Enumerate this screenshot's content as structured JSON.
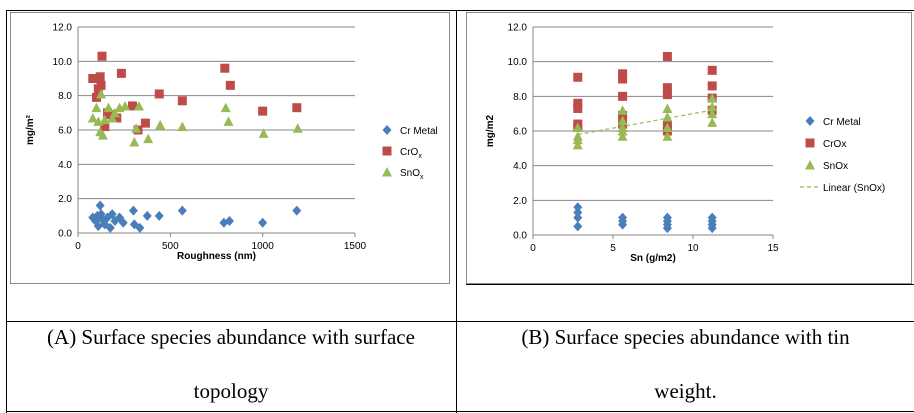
{
  "colors": {
    "cr": "#4A7EBB",
    "crox": "#BE4B48",
    "snox": "#98B954",
    "grid": "#868686",
    "trend": "#98B954"
  },
  "captions": {
    "a_line1": "(A) Surface species abundance with surface",
    "a_line2": "topology",
    "b_line1": "(B) Surface species abundance with tin",
    "b_line2": "weight."
  },
  "chart_data": [
    {
      "type": "scatter",
      "ylabel": "mg/m²",
      "xlabel": "Roughness (nm)",
      "xlim": [
        0,
        1500
      ],
      "ylim": [
        0,
        12
      ],
      "x_ticks": [
        "0",
        "500",
        "1000",
        "1500"
      ],
      "y_ticks": [
        "0.0",
        "2.0",
        "4.0",
        "6.0",
        "8.0",
        "10.0",
        "12.0"
      ],
      "grid": true,
      "legend_position": "right",
      "legend": [
        {
          "base": "Cr Metal",
          "sub": ""
        },
        {
          "base": "CrO",
          "sub": "x"
        },
        {
          "base": "SnO",
          "sub": "x"
        }
      ],
      "series": [
        {
          "name": "Cr Metal",
          "marker": "diamond",
          "points": [
            [
              80,
              0.9
            ],
            [
              95,
              0.7
            ],
            [
              105,
              1.0
            ],
            [
              110,
              0.4
            ],
            [
              120,
              1.6
            ],
            [
              125,
              1.1
            ],
            [
              130,
              0.8
            ],
            [
              145,
              0.5
            ],
            [
              160,
              0.9
            ],
            [
              175,
              0.3
            ],
            [
              185,
              1.1
            ],
            [
              200,
              0.7
            ],
            [
              225,
              0.9
            ],
            [
              245,
              0.6
            ],
            [
              300,
              1.3
            ],
            [
              305,
              0.5
            ],
            [
              335,
              0.3
            ],
            [
              375,
              1.0
            ],
            [
              440,
              1.0
            ],
            [
              565,
              1.3
            ],
            [
              790,
              0.6
            ],
            [
              820,
              0.7
            ],
            [
              1000,
              0.6
            ],
            [
              1185,
              1.3
            ]
          ]
        },
        {
          "name": "CrOx",
          "marker": "square",
          "points": [
            [
              80,
              9.0
            ],
            [
              100,
              7.9
            ],
            [
              110,
              8.4
            ],
            [
              120,
              9.1
            ],
            [
              125,
              8.6
            ],
            [
              130,
              10.3
            ],
            [
              145,
              6.2
            ],
            [
              160,
              7.0
            ],
            [
              175,
              6.9
            ],
            [
              190,
              6.7
            ],
            [
              210,
              6.7
            ],
            [
              235,
              9.3
            ],
            [
              295,
              7.4
            ],
            [
              325,
              6.0
            ],
            [
              365,
              6.4
            ],
            [
              440,
              8.1
            ],
            [
              565,
              7.7
            ],
            [
              795,
              9.6
            ],
            [
              825,
              8.6
            ],
            [
              1000,
              7.1
            ],
            [
              1185,
              7.3
            ]
          ]
        },
        {
          "name": "SnOx",
          "marker": "triangle",
          "points": [
            [
              80,
              6.7
            ],
            [
              100,
              7.3
            ],
            [
              110,
              6.5
            ],
            [
              120,
              5.9
            ],
            [
              125,
              8.1
            ],
            [
              135,
              5.7
            ],
            [
              145,
              6.6
            ],
            [
              165,
              7.3
            ],
            [
              185,
              6.7
            ],
            [
              200,
              7.0
            ],
            [
              225,
              7.3
            ],
            [
              255,
              7.4
            ],
            [
              305,
              5.3
            ],
            [
              315,
              6.1
            ],
            [
              330,
              7.4
            ],
            [
              380,
              5.5
            ],
            [
              445,
              6.3
            ],
            [
              565,
              6.2
            ],
            [
              800,
              7.3
            ],
            [
              815,
              6.5
            ],
            [
              1005,
              5.8
            ],
            [
              1190,
              6.1
            ]
          ]
        }
      ]
    },
    {
      "type": "scatter",
      "ylabel": "mg/m2",
      "xlabel": "Sn (g/m2)",
      "xlim": [
        0,
        15
      ],
      "ylim": [
        0,
        12
      ],
      "x_ticks": [
        "0",
        "5",
        "10",
        "15"
      ],
      "y_ticks": [
        "0.0",
        "2.0",
        "4.0",
        "6.0",
        "8.0",
        "10.0",
        "12.0"
      ],
      "grid": true,
      "legend_position": "right",
      "legend": [
        {
          "base": "Cr Metal",
          "sub": ""
        },
        {
          "base": "CrOx",
          "sub": ""
        },
        {
          "base": "SnOx",
          "sub": ""
        },
        {
          "base": "Linear (SnOx)",
          "sub": ""
        }
      ],
      "series": [
        {
          "name": "Cr Metal",
          "marker": "diamond",
          "points": [
            [
              2.8,
              1.6
            ],
            [
              2.8,
              1.3
            ],
            [
              2.8,
              1.0
            ],
            [
              2.8,
              0.5
            ],
            [
              5.6,
              1.0
            ],
            [
              5.6,
              0.8
            ],
            [
              5.6,
              0.6
            ],
            [
              8.4,
              1.0
            ],
            [
              8.4,
              0.8
            ],
            [
              8.4,
              0.6
            ],
            [
              8.4,
              0.4
            ],
            [
              11.2,
              1.0
            ],
            [
              11.2,
              0.8
            ],
            [
              11.2,
              0.6
            ],
            [
              11.2,
              0.4
            ]
          ]
        },
        {
          "name": "CrOx",
          "marker": "square",
          "points": [
            [
              2.8,
              9.1
            ],
            [
              2.8,
              7.6
            ],
            [
              2.8,
              7.3
            ],
            [
              2.8,
              6.4
            ],
            [
              2.8,
              6.2
            ],
            [
              5.6,
              9.3
            ],
            [
              5.6,
              9.0
            ],
            [
              5.6,
              8.0
            ],
            [
              5.6,
              6.9
            ],
            [
              5.6,
              6.4
            ],
            [
              8.4,
              10.3
            ],
            [
              8.4,
              8.5
            ],
            [
              8.4,
              8.1
            ],
            [
              8.4,
              6.3
            ],
            [
              8.4,
              6.0
            ],
            [
              11.2,
              9.5
            ],
            [
              11.2,
              8.6
            ],
            [
              11.2,
              7.9
            ],
            [
              11.2,
              7.2
            ]
          ]
        },
        {
          "name": "SnOx",
          "marker": "triangle",
          "points": [
            [
              2.8,
              6.2
            ],
            [
              2.8,
              5.7
            ],
            [
              2.8,
              5.5
            ],
            [
              2.8,
              5.2
            ],
            [
              5.6,
              7.2
            ],
            [
              5.6,
              6.6
            ],
            [
              5.6,
              6.2
            ],
            [
              5.6,
              6.0
            ],
            [
              5.6,
              5.7
            ],
            [
              8.4,
              7.3
            ],
            [
              8.4,
              6.8
            ],
            [
              8.4,
              6.2
            ],
            [
              8.4,
              5.7
            ],
            [
              11.2,
              7.9
            ],
            [
              11.2,
              7.4
            ],
            [
              11.2,
              7.0
            ],
            [
              11.2,
              6.5
            ]
          ]
        }
      ],
      "trendline": {
        "name": "Linear (SnOx)",
        "from": [
          2.8,
          5.8
        ],
        "to": [
          11.2,
          7.2
        ]
      }
    }
  ]
}
